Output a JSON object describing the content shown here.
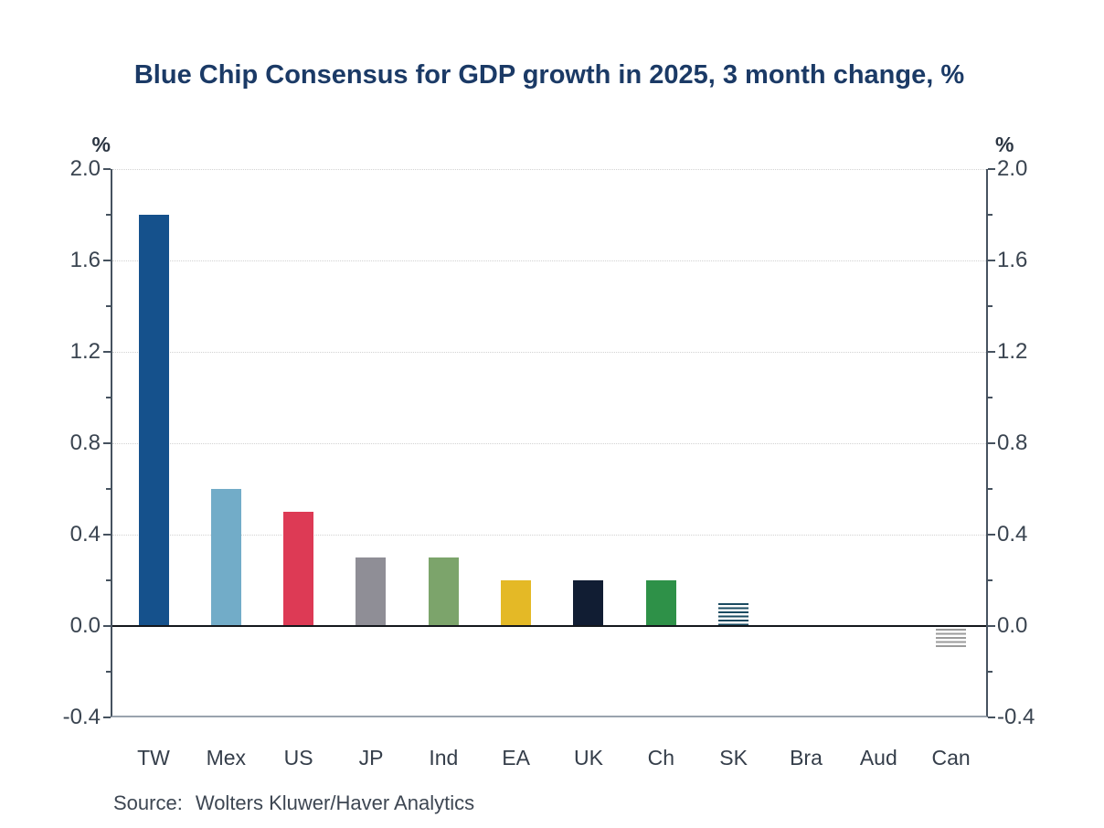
{
  "title": "Blue Chip Consensus for GDP growth in 2025, 3 month change, %",
  "source": {
    "label": "Source:",
    "text": "Wolters Kluwer/Haver Analytics"
  },
  "chart_data": {
    "type": "bar",
    "title": "Blue Chip Consensus for GDP growth in 2025, 3 month change, %",
    "categories": [
      "TW",
      "Mex",
      "US",
      "JP",
      "Ind",
      "EA",
      "UK",
      "Ch",
      "SK",
      "Bra",
      "Aud",
      "Can"
    ],
    "values": [
      1.8,
      0.6,
      0.5,
      0.3,
      0.3,
      0.2,
      0.2,
      0.2,
      0.1,
      0.0,
      0.0,
      -0.1
    ],
    "bar_colors": [
      "#15518C",
      "#72ACC8",
      "#DD3A55",
      "#8F8E96",
      "#7CA46B",
      "#E4B926",
      "#111D33",
      "#2E9148",
      "#1A4B61",
      "#15518C",
      "#15518C",
      "#9B9B9B"
    ],
    "bar_styles": [
      "solid",
      "solid",
      "solid",
      "solid",
      "solid",
      "solid",
      "solid",
      "solid",
      "hatched",
      "none",
      "none",
      "hatched"
    ],
    "xlabel": "",
    "ylabel": "%",
    "axis_unit_left": "%",
    "axis_unit_right": "%",
    "ylim": [
      -0.4,
      2.0
    ],
    "ytick_major_step": 0.4,
    "ytick_minor_step": 0.2,
    "ytick_labels": [
      "2.0",
      "1.6",
      "1.2",
      "0.8",
      "0.4",
      "0.0",
      "-0.4"
    ],
    "grid": "horizontal dotted lines at major ticks above zero",
    "zero_line": "solid black",
    "legend_position": "none"
  },
  "colors": {
    "title": "#1B3A66",
    "axis_line": "#46525F",
    "tick_label": "#3A4450",
    "gridline": "#D2D2D2",
    "zero_line": "#14171C",
    "bottom_line": "#9AA3AE",
    "source_text": "#3D4652",
    "background": "#FFFFFF"
  }
}
